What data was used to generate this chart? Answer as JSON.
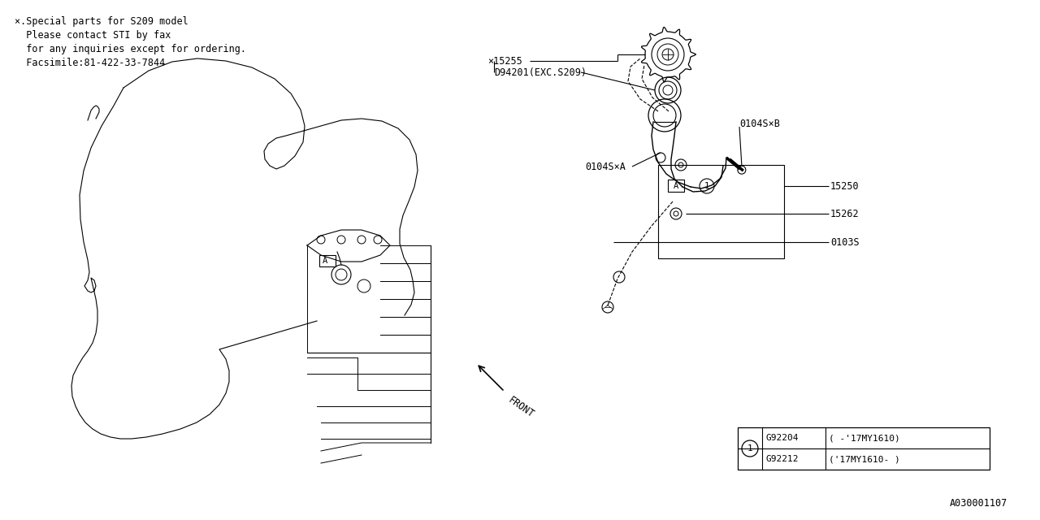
{
  "bg_color": "#ffffff",
  "line_color": "#000000",
  "note_lines": [
    "×.Special parts for S209 model",
    "  Please contact STI by fax",
    "  for any inquiries except for ordering.",
    "  Facsimile:81-422-33-7844"
  ],
  "label_15255": "×15255",
  "label_D94201": "D94201(EXC.S209)",
  "label_0104SB": "0104S×B",
  "label_0104SA": "0104S×A",
  "label_15250": "15250",
  "label_15262": "15262",
  "label_0103S": "0103S",
  "label_G92204": "G92204",
  "label_G92212": "G92212",
  "label_G92204_range": "( -'17MY1610)",
  "label_G92212_range": "('17MY1610- )",
  "label_FRONT": "FRONT",
  "footer_ref": "A030001107"
}
